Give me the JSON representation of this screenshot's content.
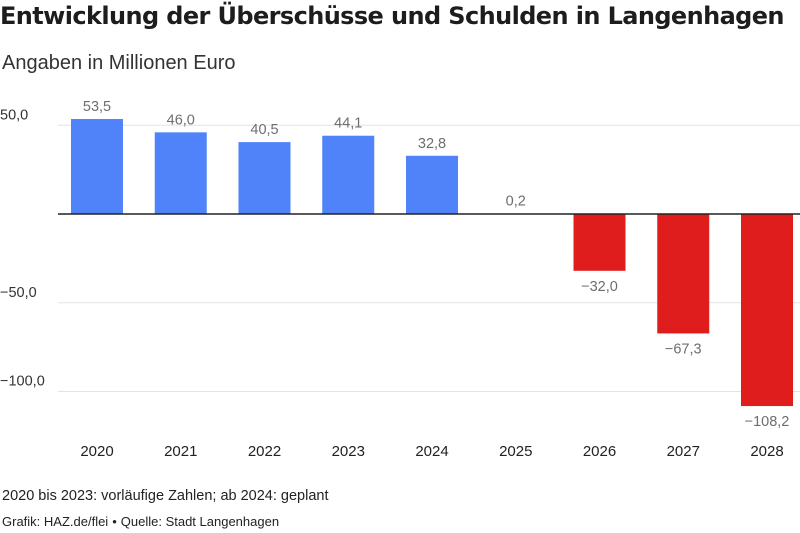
{
  "chart_data": {
    "type": "bar",
    "title": "Entwicklung der Überschüsse und Schulden in Langenhagen",
    "subtitle": "Angaben in Millionen Euro",
    "categories": [
      "2020",
      "2021",
      "2022",
      "2023",
      "2024",
      "2025",
      "2026",
      "2027",
      "2028"
    ],
    "values": [
      53.5,
      46.0,
      40.5,
      44.1,
      32.8,
      0.2,
      -32.0,
      -67.3,
      -108.2
    ],
    "value_labels": [
      "53,5",
      "46,0",
      "40,5",
      "44,1",
      "32,8",
      "0,2",
      "−32,0",
      "−67,3",
      "−108,2"
    ],
    "yticks": [
      50,
      -50,
      -100
    ],
    "ytick_labels": [
      "50,0",
      "−50,0",
      "−100,0"
    ],
    "ylim": [
      -108.2,
      53.5
    ],
    "grid": true,
    "colors": {
      "positive": "#5082fa",
      "negative": "#e01d1d",
      "grid": "#e3e3e3",
      "zero_line": "#222222",
      "value_label": "#6e6e6e",
      "tick_label": "#333333"
    }
  },
  "footer": {
    "note": "2020 bis 2023: vorläufige Zahlen; ab 2024: geplant",
    "credit_graphic": "Grafik: HAZ.de/flei",
    "credit_separator": "•",
    "credit_source": "Quelle: Stadt Langenhagen"
  }
}
